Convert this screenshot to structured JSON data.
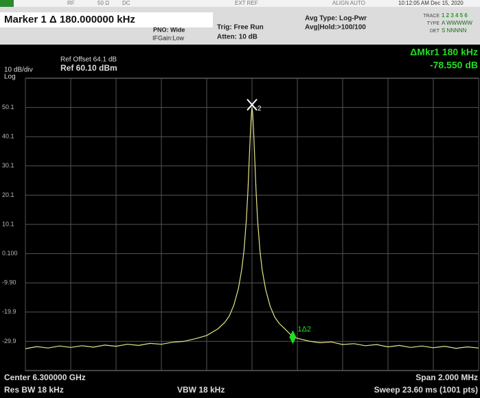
{
  "header": {
    "rf": "RF",
    "impedance": "50 Ω",
    "coupling": "DC",
    "ext_ref": "EXT REF",
    "align": "ALIGN AUTO",
    "datetime": "10:12:05 AM Dec 15, 2020",
    "marker": "Marker 1 Δ 180.000000 kHz",
    "pno": "PNO: Wide",
    "ifgain": "IFGain:Low",
    "trig": "Trig: Free Run",
    "atten": "Atten: 10 dB",
    "avg_type": "Avg Type: Log-Pwr",
    "avg_hold": "Avg|Hold:>100/100",
    "trace": "TRACE",
    "trace_nums": "1 2 3 4 5 6",
    "type": "TYPE",
    "type_val": "A WWWWW",
    "det": "DET",
    "det_val": "S NNNNN"
  },
  "display": {
    "ref_offset": "Ref Offset 64.1 dB",
    "ref": "Ref 60.10 dBm",
    "scale": "10 dB/div",
    "scale_type": "Log",
    "delta_marker": "ΔMkr1 180 kHz",
    "delta_value": "-78.550 dB"
  },
  "footer": {
    "center": "Center 6.300000 GHz",
    "res_bw": "Res BW 18 kHz",
    "vbw": "VBW 18 kHz",
    "span": "Span 2.000 MHz",
    "sweep": "Sweep  23.60 ms (1001 pts)"
  },
  "chart_data": {
    "type": "line",
    "color": "#e6e68c",
    "x": [
      6.299,
      6.29905,
      6.2991,
      6.29915,
      6.2992,
      6.29925,
      6.2993,
      6.29935,
      6.2994,
      6.29945,
      6.2995,
      6.29955,
      6.2996,
      6.29965,
      6.2997,
      6.29975,
      6.2998,
      6.29985,
      6.29988,
      6.2999,
      6.29992,
      6.29994,
      6.299955,
      6.299965,
      6.299975,
      6.299982,
      6.299988,
      6.299993,
      6.299997,
      6.3,
      6.300003,
      6.300007,
      6.300012,
      6.300018,
      6.300025,
      6.300035,
      6.300045,
      6.30006,
      6.30008,
      6.3001,
      6.30012,
      6.30015,
      6.30018,
      6.3002,
      6.30025,
      6.3003,
      6.30035,
      6.3004,
      6.30045,
      6.3005,
      6.30055,
      6.3006,
      6.30065,
      6.3007,
      6.30075,
      6.3008,
      6.30085,
      6.3009,
      6.30095,
      6.301
    ],
    "values": [
      -32.4,
      -31.7,
      -32.2,
      -31.5,
      -32.0,
      -31.4,
      -31.9,
      -31.2,
      -31.6,
      -30.9,
      -31.3,
      -30.6,
      -30.9,
      -30.2,
      -29.9,
      -29.0,
      -27.9,
      -25.6,
      -23.4,
      -21.2,
      -17.5,
      -11.8,
      -5.2,
      1.4,
      11.5,
      21.8,
      32.6,
      41.8,
      47.6,
      50.1,
      47.9,
      42.1,
      32.4,
      21.5,
      11.2,
      1.0,
      -5.5,
      -12.1,
      -17.9,
      -21.6,
      -23.8,
      -26.0,
      -28.4,
      -28.9,
      -29.8,
      -30.4,
      -30.1,
      -31.0,
      -30.7,
      -31.4,
      -31.0,
      -31.8,
      -31.3,
      -32.0,
      -31.5,
      -32.1,
      -31.6,
      -32.3,
      -31.8,
      -32.2
    ],
    "xlim": [
      6.299,
      6.301
    ],
    "xticks": [
      6.299,
      6.2992,
      6.2994,
      6.2996,
      6.2998,
      6.3,
      6.3002,
      6.3004,
      6.3006,
      6.3008,
      6.301
    ],
    "ylim": [
      -39.9,
      60.1
    ],
    "yticks": [
      50.1,
      40.1,
      30.1,
      20.1,
      10.1,
      {
        "value": 0.1,
        "label": "0.100"
      },
      {
        "value": -9.9,
        "label": "-9.90"
      },
      -19.9,
      -29.9
    ],
    "grid": true,
    "markers": [
      {
        "label": "2",
        "x": 6.3,
        "y": 50.1,
        "color": "#ffffff"
      },
      {
        "label": "1Δ2",
        "x": 6.30018,
        "y": -28.45,
        "color": "#22dd22"
      }
    ]
  }
}
